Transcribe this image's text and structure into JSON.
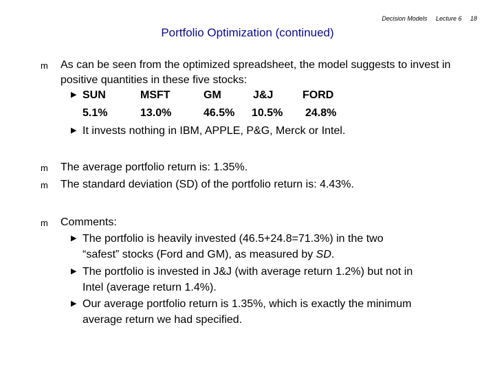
{
  "header": {
    "course": "Decision Models",
    "lecture": "Lecture 6",
    "page": "18"
  },
  "title": "Portfolio Optimization (continued)",
  "bullet_char": "m",
  "sub_bullet_char": "▶",
  "intro": {
    "text": "As can be seen from the optimized spreadsheet, the model suggests to invest in positive quantities in these five stocks:",
    "stocks": [
      "SUN",
      "MSFT",
      "GM",
      "J&J",
      "FORD"
    ],
    "weights": [
      "5.1%",
      "13.0%",
      "46.5%",
      "10.5%",
      "24.8%"
    ],
    "nothing_text": "It invests nothing in IBM, APPLE, P&G, Merck or Intel."
  },
  "avg_return": "The average portfolio return is: 1.35%.",
  "std_dev": "The standard deviation (SD) of the portfolio return is: 4.43%.",
  "comments": {
    "label": "Comments:",
    "item1_line1": "The portfolio is heavily invested (46.5+24.8=71.3%) in the two",
    "item1_line2_pre": "“safest” stocks (Ford and GM), as measured by ",
    "item1_sd": "SD",
    "item1_line2_post": ".",
    "item2_line1": "The portfolio is invested in J&J (with average return 1.2%) but not in",
    "item2_line2": "Intel (average return 1.4%).",
    "item3_line1": "Our average portfolio return is 1.35%, which is exactly the minimum",
    "item3_line2": "average return we had specified."
  }
}
